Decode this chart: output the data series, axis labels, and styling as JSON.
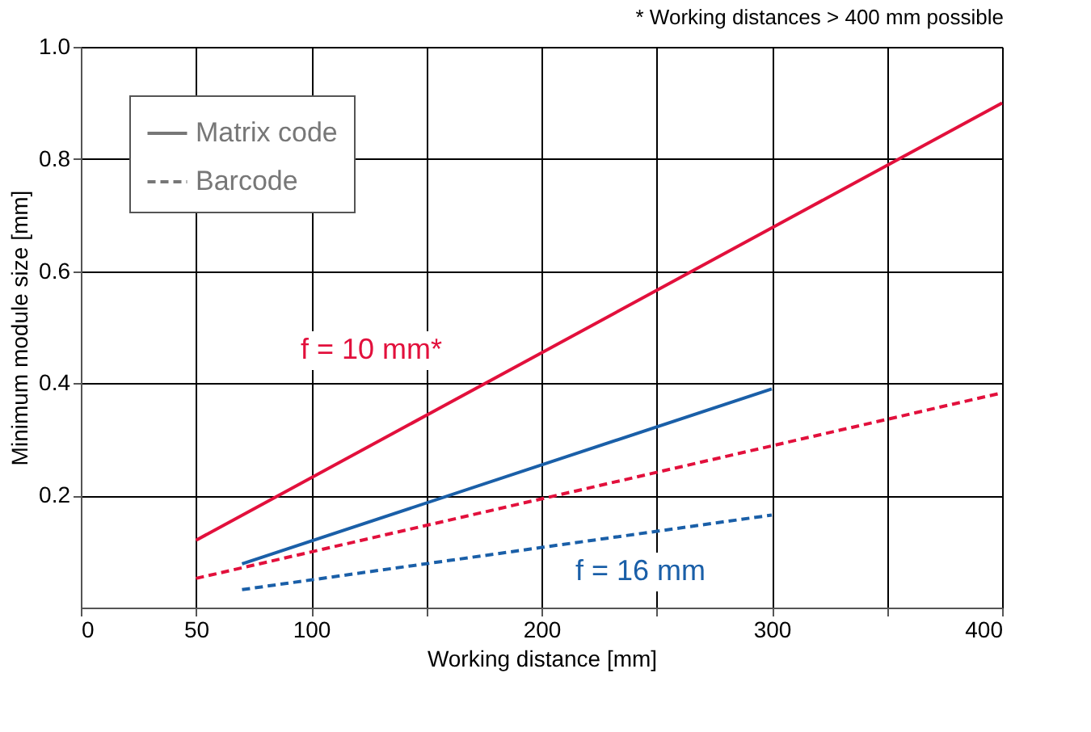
{
  "chart_data": {
    "type": "line",
    "xlabel": "Working distance [mm]",
    "ylabel": "Minimum module size [mm]",
    "xlim": [
      0,
      400
    ],
    "xticks": [
      0,
      50,
      100,
      {
        "value": 150,
        "label": null
      },
      200,
      {
        "value": 250,
        "label": null
      },
      300,
      {
        "value": 350,
        "label": null
      },
      400
    ],
    "ylim": [
      0,
      1.0
    ],
    "yticks": [
      0.2,
      0.4,
      0.6,
      0.8,
      {
        "value": 1.0,
        "label": "1.0"
      }
    ],
    "grid": true,
    "series": [
      {
        "color": "#e2103c",
        "line_style": "solid",
        "x": [
          50,
          400
        ],
        "values": [
          0.12,
          0.9
        ]
      },
      {
        "color": "#1a5fa8",
        "line_style": "solid",
        "x": [
          70,
          300
        ],
        "values": [
          0.078,
          0.39
        ]
      },
      {
        "color": "#e2103c",
        "line_style": "dashed",
        "x": [
          50,
          400
        ],
        "values": [
          0.052,
          0.383
        ]
      },
      {
        "color": "#1a5fa8",
        "line_style": "dashed",
        "x": [
          70,
          300
        ],
        "values": [
          0.032,
          0.165
        ]
      }
    ],
    "annotations": [
      "Matrix code",
      "Barcode",
      "f = 10 mm*",
      "f = 16 mm",
      "* Working distances > 400 mm possible"
    ]
  }
}
